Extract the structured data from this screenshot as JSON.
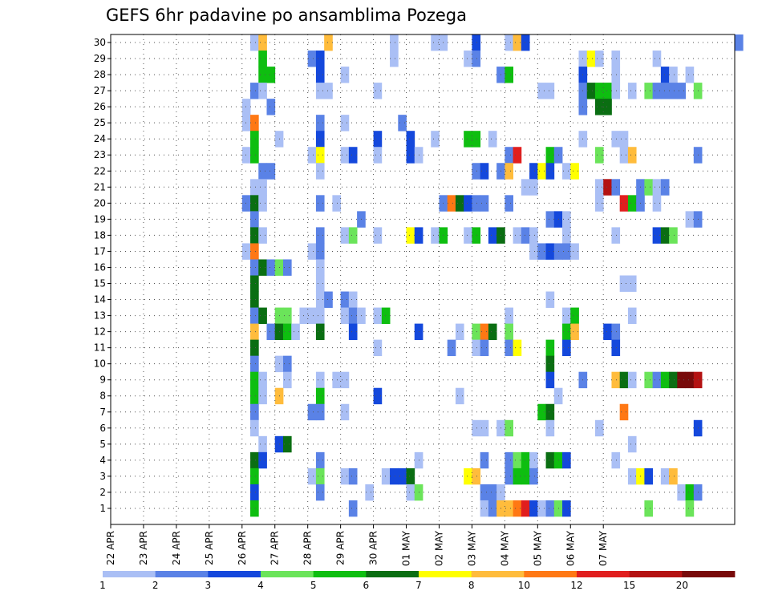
{
  "chart_data": {
    "type": "heatmap",
    "title": "GEFS 6hr padavine po ansamblima Pozega",
    "y_ticks": [
      "1",
      "2",
      "3",
      "4",
      "5",
      "6",
      "7",
      "8",
      "9",
      "10",
      "11",
      "12",
      "13",
      "14",
      "15",
      "16",
      "17",
      "18",
      "19",
      "20",
      "21",
      "22",
      "23",
      "24",
      "25",
      "26",
      "27",
      "28",
      "29",
      "30"
    ],
    "x_ticks": [
      "22 APR",
      "23 APR",
      "24 APR",
      "25 APR",
      "26 APR",
      "27 APR",
      "28 APR",
      "29 APR",
      "30 APR",
      "01 MAY",
      "02 MAY",
      "03 MAY",
      "04 MAY",
      "05 MAY",
      "06 MAY",
      "07 MAY"
    ],
    "legend_levels": [
      "1",
      "2",
      "3",
      "4",
      "5",
      "6",
      "7",
      "8",
      "10",
      "12",
      "15",
      "20"
    ],
    "colors": [
      "#aabff5",
      "#5a82e6",
      "#1448dc",
      "#6be45a",
      "#0ebe10",
      "#0a6e12",
      "#ffff00",
      "#ffbc3c",
      "#ff7814",
      "#e11e1e",
      "#b41212",
      "#780a0a"
    ],
    "grid": true,
    "cells": [
      [
        30,
        17,
        1
      ],
      [
        30,
        18,
        8
      ],
      [
        30,
        26,
        8
      ],
      [
        30,
        34,
        1
      ],
      [
        30,
        39,
        1
      ],
      [
        30,
        40,
        1
      ],
      [
        30,
        44,
        3
      ],
      [
        30,
        48,
        1
      ],
      [
        30,
        49,
        8
      ],
      [
        30,
        50,
        3
      ],
      [
        30,
        76,
        2
      ],
      [
        29,
        18,
        5
      ],
      [
        29,
        24,
        2
      ],
      [
        29,
        25,
        3
      ],
      [
        29,
        34,
        1
      ],
      [
        29,
        43,
        1
      ],
      [
        29,
        44,
        2
      ],
      [
        29,
        57,
        1
      ],
      [
        29,
        58,
        7
      ],
      [
        29,
        59,
        1
      ],
      [
        29,
        61,
        1
      ],
      [
        29,
        66,
        1
      ],
      [
        28,
        18,
        5
      ],
      [
        28,
        19,
        5
      ],
      [
        28,
        25,
        3
      ],
      [
        28,
        28,
        1
      ],
      [
        28,
        47,
        2
      ],
      [
        28,
        48,
        5
      ],
      [
        28,
        57,
        3
      ],
      [
        28,
        61,
        1
      ],
      [
        28,
        67,
        3
      ],
      [
        28,
        68,
        1
      ],
      [
        28,
        70,
        1
      ],
      [
        27,
        17,
        2
      ],
      [
        27,
        18,
        1
      ],
      [
        27,
        25,
        1
      ],
      [
        27,
        26,
        1
      ],
      [
        27,
        32,
        1
      ],
      [
        27,
        52,
        1
      ],
      [
        27,
        53,
        1
      ],
      [
        27,
        57,
        2
      ],
      [
        27,
        58,
        6
      ],
      [
        27,
        59,
        5
      ],
      [
        27,
        60,
        5
      ],
      [
        27,
        61,
        1
      ],
      [
        27,
        63,
        1
      ],
      [
        27,
        65,
        4
      ],
      [
        27,
        66,
        2
      ],
      [
        27,
        67,
        2
      ],
      [
        27,
        68,
        2
      ],
      [
        27,
        69,
        2
      ],
      [
        27,
        71,
        4
      ],
      [
        26,
        16,
        1
      ],
      [
        26,
        19,
        2
      ],
      [
        26,
        57,
        2
      ],
      [
        26,
        59,
        6
      ],
      [
        26,
        60,
        6
      ],
      [
        25,
        16,
        1
      ],
      [
        25,
        17,
        9
      ],
      [
        25,
        25,
        2
      ],
      [
        25,
        28,
        1
      ],
      [
        25,
        35,
        2
      ],
      [
        24,
        17,
        5
      ],
      [
        24,
        20,
        1
      ],
      [
        24,
        25,
        3
      ],
      [
        24,
        32,
        3
      ],
      [
        24,
        36,
        3
      ],
      [
        24,
        39,
        1
      ],
      [
        24,
        43,
        5
      ],
      [
        24,
        44,
        5
      ],
      [
        24,
        46,
        1
      ],
      [
        24,
        57,
        1
      ],
      [
        24,
        61,
        1
      ],
      [
        24,
        62,
        1
      ],
      [
        23,
        16,
        1
      ],
      [
        23,
        17,
        5
      ],
      [
        23,
        24,
        1
      ],
      [
        23,
        25,
        7
      ],
      [
        23,
        28,
        1
      ],
      [
        23,
        29,
        3
      ],
      [
        23,
        32,
        1
      ],
      [
        23,
        36,
        3
      ],
      [
        23,
        37,
        1
      ],
      [
        23,
        48,
        2
      ],
      [
        23,
        49,
        10
      ],
      [
        23,
        53,
        5
      ],
      [
        23,
        54,
        2
      ],
      [
        23,
        59,
        4
      ],
      [
        23,
        62,
        1
      ],
      [
        23,
        63,
        8
      ],
      [
        23,
        71,
        2
      ],
      [
        22,
        18,
        2
      ],
      [
        22,
        19,
        2
      ],
      [
        22,
        25,
        1
      ],
      [
        22,
        44,
        2
      ],
      [
        22,
        45,
        3
      ],
      [
        22,
        47,
        2
      ],
      [
        22,
        48,
        8
      ],
      [
        22,
        51,
        3
      ],
      [
        22,
        52,
        7
      ],
      [
        22,
        53,
        3
      ],
      [
        22,
        55,
        1
      ],
      [
        22,
        56,
        7
      ],
      [
        21,
        17,
        1
      ],
      [
        21,
        18,
        1
      ],
      [
        21,
        50,
        1
      ],
      [
        21,
        51,
        1
      ],
      [
        21,
        59,
        1
      ],
      [
        21,
        60,
        11
      ],
      [
        21,
        61,
        2
      ],
      [
        21,
        64,
        2
      ],
      [
        21,
        65,
        4
      ],
      [
        21,
        66,
        1
      ],
      [
        21,
        67,
        2
      ],
      [
        20,
        16,
        2
      ],
      [
        20,
        17,
        6
      ],
      [
        20,
        18,
        1
      ],
      [
        20,
        25,
        2
      ],
      [
        20,
        27,
        1
      ],
      [
        20,
        40,
        2
      ],
      [
        20,
        41,
        9
      ],
      [
        20,
        42,
        6
      ],
      [
        20,
        43,
        3
      ],
      [
        20,
        44,
        2
      ],
      [
        20,
        45,
        2
      ],
      [
        20,
        48,
        2
      ],
      [
        20,
        59,
        1
      ],
      [
        20,
        62,
        10
      ],
      [
        20,
        63,
        5
      ],
      [
        20,
        64,
        2
      ],
      [
        20,
        66,
        1
      ],
      [
        19,
        17,
        2
      ],
      [
        19,
        30,
        2
      ],
      [
        19,
        53,
        2
      ],
      [
        19,
        54,
        3
      ],
      [
        19,
        55,
        1
      ],
      [
        19,
        70,
        1
      ],
      [
        19,
        71,
        2
      ],
      [
        18,
        17,
        6
      ],
      [
        18,
        18,
        1
      ],
      [
        18,
        25,
        2
      ],
      [
        18,
        28,
        1
      ],
      [
        18,
        29,
        4
      ],
      [
        18,
        32,
        1
      ],
      [
        18,
        36,
        7
      ],
      [
        18,
        37,
        3
      ],
      [
        18,
        39,
        1
      ],
      [
        18,
        40,
        5
      ],
      [
        18,
        43,
        1
      ],
      [
        18,
        44,
        5
      ],
      [
        18,
        46,
        3
      ],
      [
        18,
        47,
        6
      ],
      [
        18,
        49,
        1
      ],
      [
        18,
        50,
        2
      ],
      [
        18,
        51,
        1
      ],
      [
        18,
        55,
        1
      ],
      [
        18,
        61,
        1
      ],
      [
        18,
        66,
        3
      ],
      [
        18,
        67,
        6
      ],
      [
        18,
        68,
        4
      ],
      [
        17,
        16,
        1
      ],
      [
        17,
        17,
        9
      ],
      [
        17,
        24,
        1
      ],
      [
        17,
        25,
        2
      ],
      [
        17,
        51,
        1
      ],
      [
        17,
        52,
        2
      ],
      [
        17,
        53,
        3
      ],
      [
        17,
        54,
        2
      ],
      [
        17,
        55,
        2
      ],
      [
        17,
        56,
        1
      ],
      [
        16,
        17,
        2
      ],
      [
        16,
        18,
        6
      ],
      [
        16,
        19,
        2
      ],
      [
        16,
        20,
        4
      ],
      [
        16,
        21,
        2
      ],
      [
        16,
        25,
        1
      ],
      [
        15,
        17,
        6
      ],
      [
        15,
        25,
        1
      ],
      [
        15,
        62,
        1
      ],
      [
        15,
        63,
        1
      ],
      [
        14,
        17,
        6
      ],
      [
        14,
        25,
        1
      ],
      [
        14,
        26,
        2
      ],
      [
        14,
        28,
        2
      ],
      [
        14,
        29,
        1
      ],
      [
        14,
        53,
        1
      ],
      [
        13,
        17,
        2
      ],
      [
        13,
        18,
        6
      ],
      [
        13,
        20,
        4
      ],
      [
        13,
        21,
        4
      ],
      [
        13,
        23,
        1
      ],
      [
        13,
        24,
        1
      ],
      [
        13,
        25,
        1
      ],
      [
        13,
        28,
        1
      ],
      [
        13,
        29,
        2
      ],
      [
        13,
        30,
        1
      ],
      [
        13,
        32,
        1
      ],
      [
        13,
        33,
        5
      ],
      [
        13,
        48,
        1
      ],
      [
        13,
        55,
        1
      ],
      [
        13,
        56,
        5
      ],
      [
        13,
        63,
        1
      ],
      [
        12,
        17,
        8
      ],
      [
        12,
        19,
        2
      ],
      [
        12,
        20,
        6
      ],
      [
        12,
        21,
        5
      ],
      [
        12,
        22,
        1
      ],
      [
        12,
        25,
        6
      ],
      [
        12,
        29,
        3
      ],
      [
        12,
        37,
        3
      ],
      [
        12,
        42,
        1
      ],
      [
        12,
        44,
        4
      ],
      [
        12,
        45,
        9
      ],
      [
        12,
        46,
        6
      ],
      [
        12,
        48,
        4
      ],
      [
        12,
        55,
        5
      ],
      [
        12,
        56,
        8
      ],
      [
        12,
        60,
        3
      ],
      [
        12,
        61,
        2
      ],
      [
        11,
        17,
        6
      ],
      [
        11,
        32,
        1
      ],
      [
        11,
        41,
        2
      ],
      [
        11,
        44,
        1
      ],
      [
        11,
        45,
        2
      ],
      [
        11,
        48,
        2
      ],
      [
        11,
        49,
        7
      ],
      [
        11,
        53,
        5
      ],
      [
        11,
        55,
        3
      ],
      [
        11,
        61,
        3
      ],
      [
        10,
        17,
        2
      ],
      [
        10,
        20,
        1
      ],
      [
        10,
        21,
        2
      ],
      [
        10,
        53,
        6
      ],
      [
        9,
        17,
        5
      ],
      [
        9,
        18,
        1
      ],
      [
        9,
        21,
        1
      ],
      [
        9,
        25,
        1
      ],
      [
        9,
        27,
        1
      ],
      [
        9,
        28,
        1
      ],
      [
        9,
        53,
        3
      ],
      [
        9,
        57,
        2
      ],
      [
        9,
        61,
        8
      ],
      [
        9,
        62,
        6
      ],
      [
        9,
        63,
        1
      ],
      [
        9,
        65,
        4
      ],
      [
        9,
        66,
        2
      ],
      [
        9,
        67,
        5
      ],
      [
        9,
        68,
        6
      ],
      [
        9,
        69,
        12
      ],
      [
        9,
        70,
        12
      ],
      [
        9,
        71,
        11
      ],
      [
        8,
        17,
        5
      ],
      [
        8,
        18,
        1
      ],
      [
        8,
        20,
        8
      ],
      [
        8,
        25,
        5
      ],
      [
        8,
        32,
        3
      ],
      [
        8,
        42,
        1
      ],
      [
        8,
        54,
        1
      ],
      [
        7,
        17,
        2
      ],
      [
        7,
        24,
        2
      ],
      [
        7,
        25,
        2
      ],
      [
        7,
        28,
        1
      ],
      [
        7,
        52,
        5
      ],
      [
        7,
        53,
        6
      ],
      [
        7,
        62,
        9
      ],
      [
        6,
        17,
        1
      ],
      [
        6,
        44,
        1
      ],
      [
        6,
        45,
        1
      ],
      [
        6,
        47,
        1
      ],
      [
        6,
        48,
        4
      ],
      [
        6,
        53,
        1
      ],
      [
        6,
        59,
        1
      ],
      [
        6,
        71,
        3
      ],
      [
        5,
        18,
        1
      ],
      [
        5,
        20,
        3
      ],
      [
        5,
        21,
        6
      ],
      [
        5,
        63,
        1
      ],
      [
        4,
        17,
        6
      ],
      [
        4,
        18,
        3
      ],
      [
        4,
        25,
        2
      ],
      [
        4,
        37,
        1
      ],
      [
        4,
        45,
        2
      ],
      [
        4,
        48,
        2
      ],
      [
        4,
        49,
        4
      ],
      [
        4,
        50,
        5
      ],
      [
        4,
        51,
        1
      ],
      [
        4,
        53,
        6
      ],
      [
        4,
        54,
        5
      ],
      [
        4,
        55,
        3
      ],
      [
        4,
        61,
        1
      ],
      [
        3,
        17,
        5
      ],
      [
        3,
        24,
        1
      ],
      [
        3,
        25,
        4
      ],
      [
        3,
        28,
        1
      ],
      [
        3,
        29,
        2
      ],
      [
        3,
        33,
        1
      ],
      [
        3,
        34,
        3
      ],
      [
        3,
        35,
        3
      ],
      [
        3,
        36,
        6
      ],
      [
        3,
        43,
        7
      ],
      [
        3,
        44,
        8
      ],
      [
        3,
        48,
        2
      ],
      [
        3,
        49,
        5
      ],
      [
        3,
        50,
        5
      ],
      [
        3,
        51,
        2
      ],
      [
        3,
        63,
        1
      ],
      [
        3,
        64,
        7
      ],
      [
        3,
        65,
        3
      ],
      [
        3,
        67,
        1
      ],
      [
        3,
        68,
        8
      ],
      [
        2,
        17,
        3
      ],
      [
        2,
        25,
        2
      ],
      [
        2,
        31,
        1
      ],
      [
        2,
        36,
        1
      ],
      [
        2,
        37,
        4
      ],
      [
        2,
        45,
        2
      ],
      [
        2,
        46,
        2
      ],
      [
        2,
        47,
        1
      ],
      [
        2,
        69,
        1
      ],
      [
        2,
        70,
        5
      ],
      [
        2,
        71,
        2
      ],
      [
        1,
        17,
        5
      ],
      [
        1,
        29,
        2
      ],
      [
        1,
        45,
        1
      ],
      [
        1,
        46,
        2
      ],
      [
        1,
        47,
        8
      ],
      [
        1,
        48,
        8
      ],
      [
        1,
        49,
        9
      ],
      [
        1,
        50,
        10
      ],
      [
        1,
        51,
        3
      ],
      [
        1,
        52,
        1
      ],
      [
        1,
        53,
        2
      ],
      [
        1,
        54,
        4
      ],
      [
        1,
        55,
        3
      ],
      [
        1,
        65,
        4
      ],
      [
        1,
        70,
        4
      ]
    ]
  }
}
